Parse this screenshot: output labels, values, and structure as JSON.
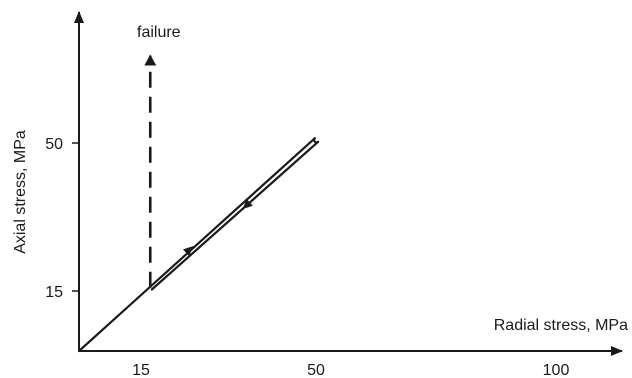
{
  "chart_data": {
    "type": "line",
    "title": "",
    "xlabel": "Radial stress, MPa",
    "ylabel": "Axial stress, MPa",
    "x_ticks": [
      "15",
      "50",
      "100"
    ],
    "y_ticks": [
      "15",
      "50"
    ],
    "annotation": "failure",
    "grid": false,
    "series": [
      {
        "style": "solid",
        "points": [
          [
            0,
            0
          ],
          [
            15,
            15
          ],
          [
            50,
            50
          ],
          [
            15,
            15
          ]
        ]
      },
      {
        "style": "dashed",
        "points": [
          [
            15,
            15
          ],
          [
            15,
            70
          ]
        ]
      }
    ]
  }
}
